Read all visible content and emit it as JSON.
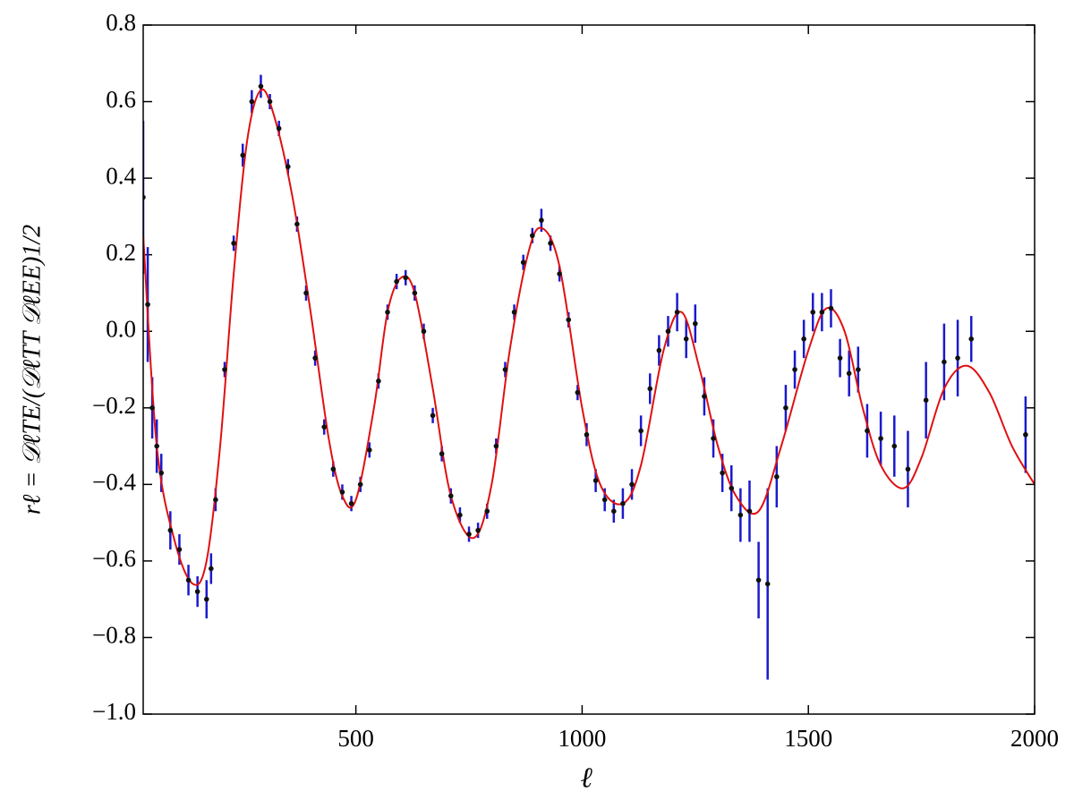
{
  "chart_data": {
    "type": "errorbar",
    "xlabel": "ℓ",
    "ylabel": "rℓ = 𝒟ℓTE/(𝒟ℓTT 𝒟ℓEE)1/2",
    "xlim": [
      30,
      2000
    ],
    "ylim": [
      -1.0,
      0.8
    ],
    "xticks": [
      500,
      1000,
      1500,
      2000
    ],
    "yticks": [
      {
        "value": -1.0,
        "label": "−1.0"
      },
      {
        "value": -0.8,
        "label": "−0.8"
      },
      {
        "value": -0.6,
        "label": "−0.6"
      },
      {
        "value": -0.4,
        "label": "−0.4"
      },
      {
        "value": -0.2,
        "label": "−0.2"
      },
      {
        "value": 0.0,
        "label": "0.0"
      },
      {
        "value": 0.2,
        "label": "0.2"
      },
      {
        "value": 0.4,
        "label": "0.4"
      },
      {
        "value": 0.6,
        "label": "0.6"
      },
      {
        "value": 0.8,
        "label": "0.8"
      }
    ],
    "data": {
      "color": "#111111",
      "error_color": "#1a1acc",
      "x": [
        30,
        40,
        50,
        60,
        70,
        90,
        110,
        130,
        150,
        170,
        180,
        190,
        210,
        230,
        250,
        270,
        290,
        310,
        330,
        350,
        370,
        390,
        410,
        430,
        450,
        470,
        490,
        510,
        530,
        550,
        570,
        590,
        610,
        630,
        650,
        670,
        690,
        710,
        730,
        750,
        770,
        790,
        810,
        830,
        850,
        870,
        890,
        910,
        930,
        950,
        970,
        990,
        1010,
        1030,
        1050,
        1070,
        1090,
        1110,
        1130,
        1150,
        1170,
        1190,
        1210,
        1230,
        1250,
        1270,
        1290,
        1310,
        1330,
        1350,
        1370,
        1390,
        1410,
        1430,
        1450,
        1470,
        1490,
        1510,
        1530,
        1550,
        1570,
        1590,
        1610,
        1630,
        1660,
        1690,
        1720,
        1760,
        1800,
        1830,
        1860,
        1980
      ],
      "values": [
        0.35,
        0.07,
        -0.2,
        -0.3,
        -0.37,
        -0.52,
        -0.57,
        -0.65,
        -0.68,
        -0.7,
        -0.62,
        -0.44,
        -0.1,
        0.23,
        0.46,
        0.6,
        0.64,
        0.6,
        0.53,
        0.43,
        0.28,
        0.1,
        -0.07,
        -0.25,
        -0.36,
        -0.42,
        -0.45,
        -0.4,
        -0.31,
        -0.13,
        0.05,
        0.13,
        0.14,
        0.1,
        0.0,
        -0.22,
        -0.32,
        -0.43,
        -0.48,
        -0.53,
        -0.52,
        -0.47,
        -0.3,
        -0.1,
        0.05,
        0.18,
        0.25,
        0.29,
        0.23,
        0.15,
        0.03,
        -0.16,
        -0.27,
        -0.39,
        -0.44,
        -0.47,
        -0.45,
        -0.4,
        -0.26,
        -0.15,
        -0.05,
        0.0,
        0.05,
        -0.02,
        0.02,
        -0.17,
        -0.28,
        -0.37,
        -0.41,
        -0.48,
        -0.47,
        -0.65,
        -0.66,
        -0.38,
        -0.2,
        -0.1,
        -0.02,
        0.05,
        0.05,
        0.06,
        -0.07,
        -0.11,
        -0.1,
        -0.26,
        -0.28,
        -0.3,
        -0.36,
        -0.18,
        -0.08,
        -0.07,
        -0.02,
        -0.27
      ],
      "errors": [
        0.2,
        0.15,
        0.08,
        0.07,
        0.05,
        0.05,
        0.04,
        0.04,
        0.04,
        0.05,
        0.04,
        0.03,
        0.02,
        0.02,
        0.03,
        0.03,
        0.03,
        0.02,
        0.02,
        0.02,
        0.02,
        0.02,
        0.02,
        0.02,
        0.02,
        0.02,
        0.02,
        0.02,
        0.02,
        0.02,
        0.02,
        0.02,
        0.02,
        0.02,
        0.02,
        0.02,
        0.02,
        0.02,
        0.02,
        0.02,
        0.02,
        0.02,
        0.02,
        0.02,
        0.02,
        0.02,
        0.02,
        0.03,
        0.02,
        0.02,
        0.02,
        0.02,
        0.03,
        0.03,
        0.03,
        0.03,
        0.04,
        0.04,
        0.04,
        0.04,
        0.04,
        0.04,
        0.05,
        0.05,
        0.05,
        0.05,
        0.05,
        0.05,
        0.06,
        0.07,
        0.08,
        0.1,
        0.25,
        0.08,
        0.06,
        0.05,
        0.05,
        0.05,
        0.05,
        0.05,
        0.05,
        0.06,
        0.06,
        0.07,
        0.07,
        0.08,
        0.1,
        0.1,
        0.1,
        0.1,
        0.06,
        0.1
      ]
    },
    "model": {
      "color": "#e01010",
      "x": [
        30,
        60,
        100,
        140,
        170,
        200,
        230,
        260,
        290,
        320,
        360,
        400,
        440,
        470,
        500,
        540,
        570,
        600,
        630,
        670,
        710,
        760,
        800,
        840,
        880,
        910,
        950,
        1000,
        1040,
        1090,
        1130,
        1180,
        1220,
        1260,
        1300,
        1340,
        1390,
        1440,
        1500,
        1540,
        1580,
        1620,
        1660,
        1710,
        1750,
        1800,
        1850,
        1900,
        1950,
        2000
      ],
      "values": [
        0.25,
        -0.3,
        -0.55,
        -0.66,
        -0.6,
        -0.3,
        0.15,
        0.5,
        0.63,
        0.56,
        0.35,
        0.05,
        -0.28,
        -0.43,
        -0.44,
        -0.2,
        0.05,
        0.14,
        0.1,
        -0.15,
        -0.43,
        -0.54,
        -0.4,
        -0.05,
        0.2,
        0.27,
        0.17,
        -0.2,
        -0.4,
        -0.45,
        -0.35,
        -0.05,
        0.05,
        -0.1,
        -0.3,
        -0.43,
        -0.47,
        -0.3,
        -0.05,
        0.06,
        0.0,
        -0.2,
        -0.35,
        -0.41,
        -0.33,
        -0.15,
        -0.09,
        -0.16,
        -0.3,
        -0.4
      ]
    }
  }
}
